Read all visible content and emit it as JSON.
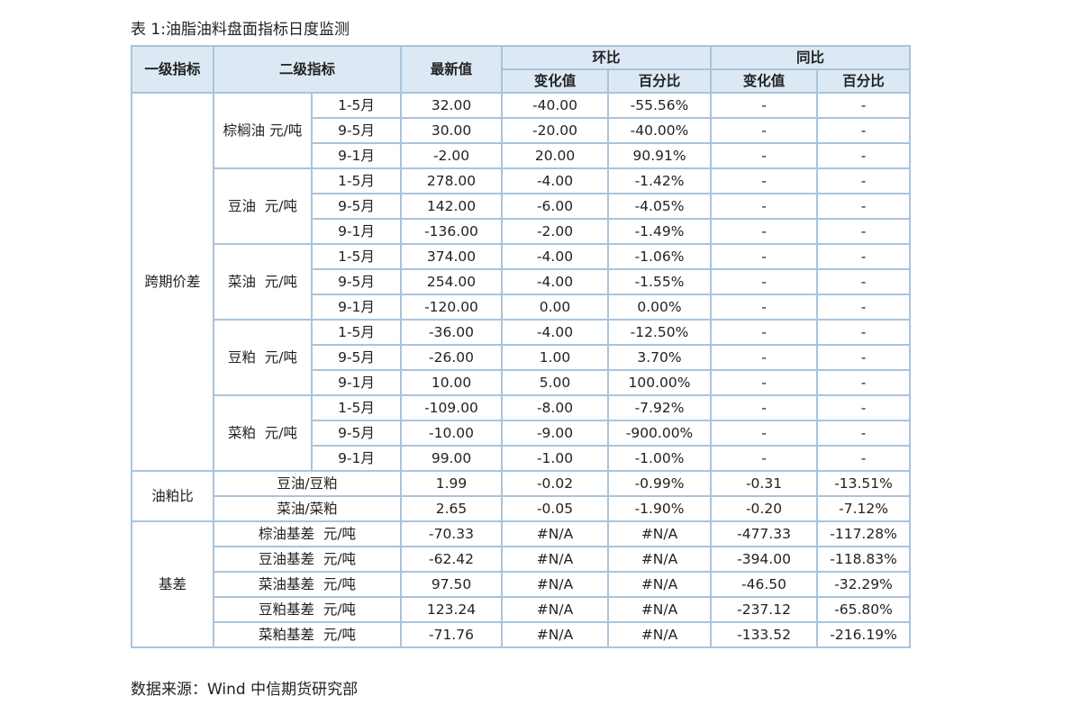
{
  "title": "表 1:油脂油料盘面指标日度监测",
  "table": {
    "header": {
      "level1": "一级指标",
      "level2": "二级指标",
      "latest": "最新值",
      "mom": "环比",
      "yoy": "同比",
      "mom_change": "变化值",
      "mom_pct": "百分比",
      "yoy_change": "变化值",
      "yoy_pct": "百分比"
    },
    "sections": [
      {
        "label": "跨期价差",
        "groups": [
          {
            "label": "棕榈油 元/吨",
            "rows": [
              [
                "1-5月",
                "32.00",
                "-40.00",
                "-55.56%",
                "-",
                "-"
              ],
              [
                "9-5月",
                "30.00",
                "-20.00",
                "-40.00%",
                "-",
                "-"
              ],
              [
                "9-1月",
                "-2.00",
                "20.00",
                "90.91%",
                "-",
                "-"
              ]
            ]
          },
          {
            "label": "豆油  元/吨",
            "rows": [
              [
                "1-5月",
                "278.00",
                "-4.00",
                "-1.42%",
                "-",
                "-"
              ],
              [
                "9-5月",
                "142.00",
                "-6.00",
                "-4.05%",
                "-",
                "-"
              ],
              [
                "9-1月",
                "-136.00",
                "-2.00",
                "-1.49%",
                "-",
                "-"
              ]
            ]
          },
          {
            "label": "菜油  元/吨",
            "rows": [
              [
                "1-5月",
                "374.00",
                "-4.00",
                "-1.06%",
                "-",
                "-"
              ],
              [
                "9-5月",
                "254.00",
                "-4.00",
                "-1.55%",
                "-",
                "-"
              ],
              [
                "9-1月",
                "-120.00",
                "0.00",
                "0.00%",
                "-",
                "-"
              ]
            ]
          },
          {
            "label": "豆粕  元/吨",
            "rows": [
              [
                "1-5月",
                "-36.00",
                "-4.00",
                "-12.50%",
                "-",
                "-"
              ],
              [
                "9-5月",
                "-26.00",
                "1.00",
                "3.70%",
                "-",
                "-"
              ],
              [
                "9-1月",
                "10.00",
                "5.00",
                "100.00%",
                "-",
                "-"
              ]
            ]
          },
          {
            "label": "菜粕  元/吨",
            "rows": [
              [
                "1-5月",
                "-109.00",
                "-8.00",
                "-7.92%",
                "-",
                "-"
              ],
              [
                "9-5月",
                "-10.00",
                "-9.00",
                "-900.00%",
                "-",
                "-"
              ],
              [
                "9-1月",
                "99.00",
                "-1.00",
                "-1.00%",
                "-",
                "-"
              ]
            ]
          }
        ]
      },
      {
        "label": "油粕比",
        "rows": [
          [
            "豆油/豆粕",
            "1.99",
            "-0.02",
            "-0.99%",
            "-0.31",
            "-13.51%"
          ],
          [
            "菜油/菜粕",
            "2.65",
            "-0.05",
            "-1.90%",
            "-0.20",
            "-7.12%"
          ]
        ]
      },
      {
        "label": "基差",
        "rows": [
          [
            "棕油基差  元/吨",
            "-70.33",
            "#N/A",
            "#N/A",
            "-477.33",
            "-117.28%"
          ],
          [
            "豆油基差  元/吨",
            "-62.42",
            "#N/A",
            "#N/A",
            "-394.00",
            "-118.83%"
          ],
          [
            "菜油基差  元/吨",
            "97.50",
            "#N/A",
            "#N/A",
            "-46.50",
            "-32.29%"
          ],
          [
            "豆粕基差  元/吨",
            "123.24",
            "#N/A",
            "#N/A",
            "-237.12",
            "-65.80%"
          ],
          [
            "菜粕基差  元/吨",
            "-71.76",
            "#N/A",
            "#N/A",
            "-133.52",
            "-216.19%"
          ]
        ]
      }
    ]
  },
  "source": "数据来源：Wind  中信期货研究部"
}
